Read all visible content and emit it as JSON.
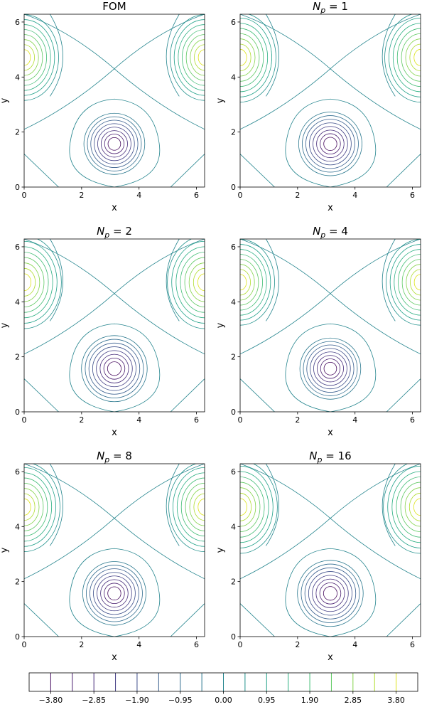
{
  "chart_data": [
    {
      "type": "contour",
      "title": "FOM",
      "xlabel": "x",
      "ylabel": "y",
      "xlim": [
        0,
        6.283
      ],
      "ylim": [
        0,
        6.283
      ],
      "xticks": [
        0,
        2,
        4,
        6
      ],
      "yticks": [
        0,
        2,
        4,
        6
      ]
    },
    {
      "type": "contour",
      "title": "N",
      "title_sub": "p",
      "title_rest": " = 1",
      "xlabel": "x",
      "ylabel": "y",
      "xlim": [
        0,
        6.283
      ],
      "ylim": [
        0,
        6.283
      ],
      "xticks": [
        0,
        2,
        4,
        6
      ],
      "yticks": [
        0,
        2,
        4,
        6
      ]
    },
    {
      "type": "contour",
      "title": "N",
      "title_sub": "p",
      "title_rest": " = 2",
      "xlabel": "x",
      "ylabel": "y",
      "xlim": [
        0,
        6.283
      ],
      "ylim": [
        0,
        6.283
      ],
      "xticks": [
        0,
        2,
        4,
        6
      ],
      "yticks": [
        0,
        2,
        4,
        6
      ]
    },
    {
      "type": "contour",
      "title": "N",
      "title_sub": "p",
      "title_rest": " = 4",
      "xlabel": "x",
      "ylabel": "y",
      "xlim": [
        0,
        6.283
      ],
      "ylim": [
        0,
        6.283
      ],
      "xticks": [
        0,
        2,
        4,
        6
      ],
      "yticks": [
        0,
        2,
        4,
        6
      ]
    },
    {
      "type": "contour",
      "title": "N",
      "title_sub": "p",
      "title_rest": " = 8",
      "xlabel": "x",
      "ylabel": "y",
      "xlim": [
        0,
        6.283
      ],
      "ylim": [
        0,
        6.283
      ],
      "xticks": [
        0,
        2,
        4,
        6
      ],
      "yticks": [
        0,
        2,
        4,
        6
      ]
    },
    {
      "type": "contour",
      "title": "N",
      "title_sub": "p",
      "title_rest": " = 16",
      "xlabel": "x",
      "ylabel": "y",
      "xlim": [
        0,
        6.283
      ],
      "ylim": [
        0,
        6.283
      ],
      "xticks": [
        0,
        2,
        4,
        6
      ],
      "yticks": [
        0,
        2,
        4,
        6
      ]
    },
    {
      "type": "colorbar",
      "xlim": [
        -4.275,
        4.275
      ],
      "levels": [
        -3.8,
        -3.325,
        -2.85,
        -2.375,
        -1.9,
        -1.425,
        -0.95,
        -0.475,
        0,
        0.475,
        0.95,
        1.425,
        1.9,
        2.375,
        2.85,
        3.325,
        3.8
      ],
      "colors": [
        "#460b5e",
        "#481d6f",
        "#472d7b",
        "#433e85",
        "#3d4e8a",
        "#365c8d",
        "#2f6b8e",
        "#2a788e",
        "#25858e",
        "#21918c",
        "#1fa088",
        "#28ae80",
        "#3fbc73",
        "#5ec962",
        "#84d44b",
        "#b0dd2f",
        "#dde318"
      ],
      "xticks": [
        {
          "value": -3.8,
          "label": "−3.80"
        },
        {
          "value": -2.85,
          "label": "−2.85"
        },
        {
          "value": -1.9,
          "label": "−1.90"
        },
        {
          "value": -0.95,
          "label": "−0.95"
        },
        {
          "value": 0,
          "label": "0.00"
        },
        {
          "value": 0.95,
          "label": "0.95"
        },
        {
          "value": 1.9,
          "label": "1.90"
        },
        {
          "value": 2.85,
          "label": "2.85"
        },
        {
          "value": 3.8,
          "label": "3.80"
        }
      ]
    }
  ]
}
